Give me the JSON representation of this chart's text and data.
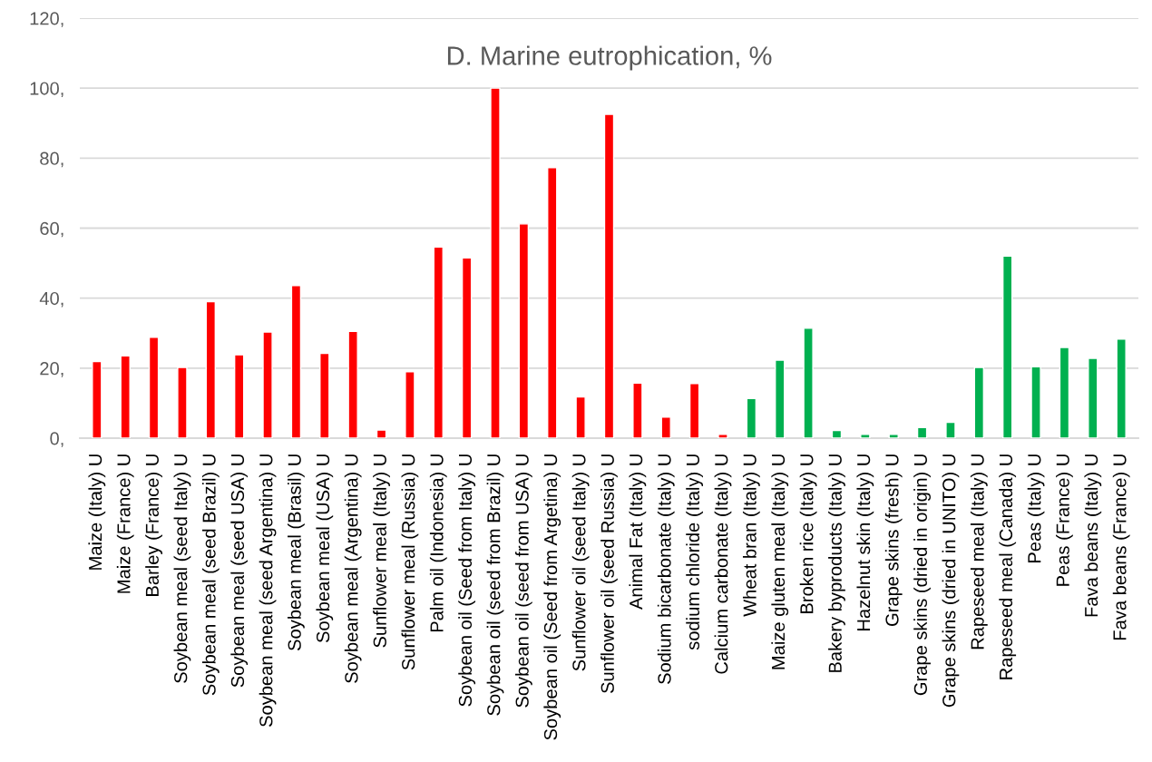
{
  "chart_data": {
    "type": "bar",
    "title": "D. Marine eutrophication, %",
    "categories": [
      "Maize (Italy) U",
      "Maize (France) U",
      "Barley (France) U",
      "Soybean meal (seed Italy) U",
      "Soybean meal (seed Brazil) U",
      "Soybean meal (seed USA) U",
      "Soybean meal (seed Argentina) U",
      "Soybean meal (Brasil) U",
      "Soybean meal (USA) U",
      "Soybean meal (Argentina) U",
      "Sunflower meal (Italy) U",
      "Sunflower meal (Russia) U",
      "Palm oil (Indonesia) U",
      "Soybean oil (Seed from Italy) U",
      "Soybean oil (seed from Brazil) U",
      "Soybean oil (seed from USA) U",
      "Soybean oil (Seed from Argetina) U",
      "Sunflower oil (seed Italy) U",
      "Sunflower oil (seed Russia) U",
      "Animal Fat (Italy) U",
      "Sodium bicarbonate (Italy) U",
      "sodium chloride (Italy) U",
      "Calcium carbonate (Italy) U",
      "Wheat bran (Italy) U",
      "Maize gluten meal (Italy) U",
      "Broken rice (Italy) U",
      "Bakery byproducts (Italy) U",
      "Hazelnut skin (Italy) U",
      "Grape skins (fresh) U",
      "Grape skins (dried in origin) U",
      "Grape skins (dried in UNITO) U",
      "Rapeseed meal (Italy) U",
      "Rapeseed meal (Canada) U",
      "Peas (Italy) U",
      "Peas (France) U",
      "Fava beans (Italy) U",
      "Fava beans (France) U"
    ],
    "values": [
      21.9,
      23.5,
      28.8,
      20.2,
      39.0,
      23.8,
      30.3,
      43.6,
      24.2,
      30.5,
      2.3,
      19.0,
      54.6,
      51.5,
      100,
      61.2,
      77.3,
      11.8,
      92.5,
      15.7,
      6.0,
      15.6,
      1.1,
      11.3,
      22.3,
      31.4,
      2.2,
      1.1,
      1.1,
      3.0,
      4.5,
      20.2,
      52.0,
      20.4,
      25.9,
      22.8,
      28.3
    ],
    "colors": [
      "#ff0000",
      "#ff0000",
      "#ff0000",
      "#ff0000",
      "#ff0000",
      "#ff0000",
      "#ff0000",
      "#ff0000",
      "#ff0000",
      "#ff0000",
      "#ff0000",
      "#ff0000",
      "#ff0000",
      "#ff0000",
      "#ff0000",
      "#ff0000",
      "#ff0000",
      "#ff0000",
      "#ff0000",
      "#ff0000",
      "#ff0000",
      "#ff0000",
      "#ff0000",
      "#00b050",
      "#00b050",
      "#00b050",
      "#00b050",
      "#00b050",
      "#00b050",
      "#00b050",
      "#00b050",
      "#00b050",
      "#00b050",
      "#00b050",
      "#00b050",
      "#00b050",
      "#00b050"
    ],
    "ylim": [
      0,
      120
    ],
    "yticks": [
      {
        "value": 0,
        "label": "0,"
      },
      {
        "value": 20,
        "label": "20,"
      },
      {
        "value": 40,
        "label": "40,"
      },
      {
        "value": 60,
        "label": "60,"
      },
      {
        "value": 80,
        "label": "80,"
      },
      {
        "value": 100,
        "label": "100,"
      },
      {
        "value": 120,
        "label": "120,"
      }
    ],
    "grid": "y"
  }
}
